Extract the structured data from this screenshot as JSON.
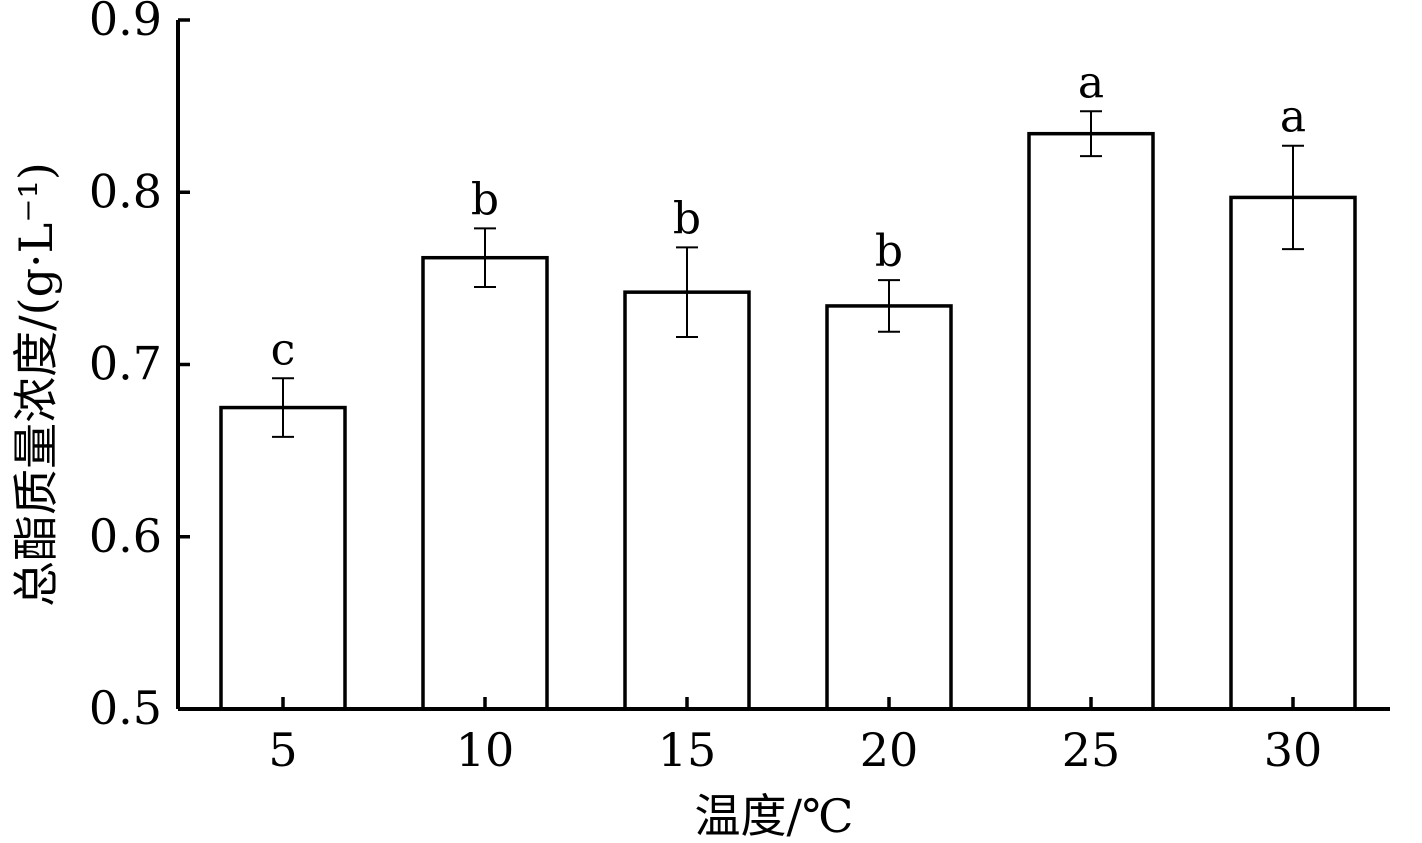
{
  "chart_data": {
    "type": "bar",
    "categories": [
      "5",
      "10",
      "15",
      "20",
      "25",
      "30"
    ],
    "values": [
      0.675,
      0.762,
      0.742,
      0.734,
      0.834,
      0.797
    ],
    "errors": [
      0.017,
      0.017,
      0.026,
      0.015,
      0.013,
      0.03
    ],
    "significance": [
      "c",
      "b",
      "b",
      "b",
      "a",
      "a"
    ],
    "xlabel": "温度/℃",
    "ylabel": "总酯质量浓度/(g·L⁻¹)",
    "ylim": [
      0.5,
      0.9
    ],
    "yticks": [
      "0.5",
      "0.6",
      "0.7",
      "0.8",
      "0.9"
    ],
    "grid": false
  }
}
